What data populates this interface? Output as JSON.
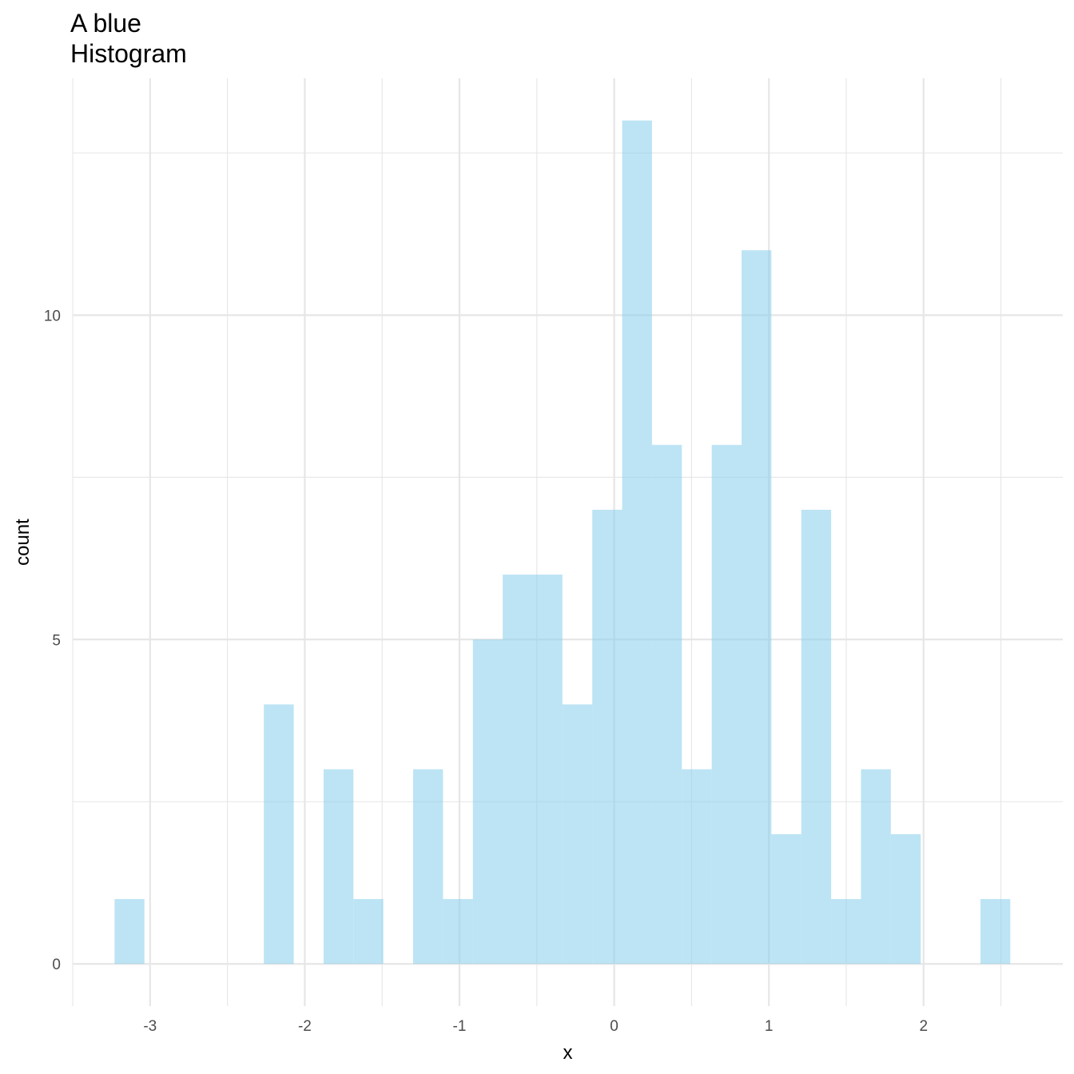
{
  "chart_data": {
    "type": "bar",
    "subtype": "histogram",
    "title": [
      "A blue",
      "Histogram"
    ],
    "xlabel": "x",
    "ylabel": "count",
    "bin_width": 0.193,
    "bins": [
      {
        "x": -3.133,
        "count": 1
      },
      {
        "x": -2.94,
        "count": 0
      },
      {
        "x": -2.747,
        "count": 0
      },
      {
        "x": -2.554,
        "count": 0
      },
      {
        "x": -2.361,
        "count": 0
      },
      {
        "x": -2.168,
        "count": 4
      },
      {
        "x": -1.975,
        "count": 0
      },
      {
        "x": -1.782,
        "count": 3
      },
      {
        "x": -1.589,
        "count": 1
      },
      {
        "x": -1.396,
        "count": 0
      },
      {
        "x": -1.203,
        "count": 3
      },
      {
        "x": -1.01,
        "count": 1
      },
      {
        "x": -0.817,
        "count": 5
      },
      {
        "x": -0.624,
        "count": 6
      },
      {
        "x": -0.431,
        "count": 6
      },
      {
        "x": -0.238,
        "count": 4
      },
      {
        "x": -0.045,
        "count": 7
      },
      {
        "x": 0.148,
        "count": 13
      },
      {
        "x": 0.341,
        "count": 8
      },
      {
        "x": 0.534,
        "count": 3
      },
      {
        "x": 0.727,
        "count": 8
      },
      {
        "x": 0.92,
        "count": 11
      },
      {
        "x": 1.113,
        "count": 2
      },
      {
        "x": 1.306,
        "count": 7
      },
      {
        "x": 1.499,
        "count": 1
      },
      {
        "x": 1.692,
        "count": 3
      },
      {
        "x": 1.885,
        "count": 2
      },
      {
        "x": 2.078,
        "count": 0
      },
      {
        "x": 2.271,
        "count": 0
      },
      {
        "x": 2.464,
        "count": 1
      }
    ],
    "xlim": [
      -3.5,
      2.9
    ],
    "ylim": [
      -0.65,
      13.65
    ],
    "x_ticks": [
      -3,
      -2,
      -1,
      0,
      1,
      2
    ],
    "x_tick_labels": [
      "-3",
      "-2",
      "-1",
      "0",
      "1",
      "2"
    ],
    "y_ticks": [
      0,
      5,
      10
    ],
    "y_tick_labels": [
      "0",
      "5",
      "10"
    ],
    "x_minor_ticks": [
      -3.5,
      -2.5,
      -1.5,
      -0.5,
      0.5,
      1.5,
      2.5
    ],
    "y_minor_ticks": [
      2.5,
      7.5,
      12.5
    ],
    "grid": true,
    "legend": "none",
    "bar_color": "#87CEEB",
    "bar_opacity": 0.55,
    "grid_color": "#e6e6e6"
  }
}
